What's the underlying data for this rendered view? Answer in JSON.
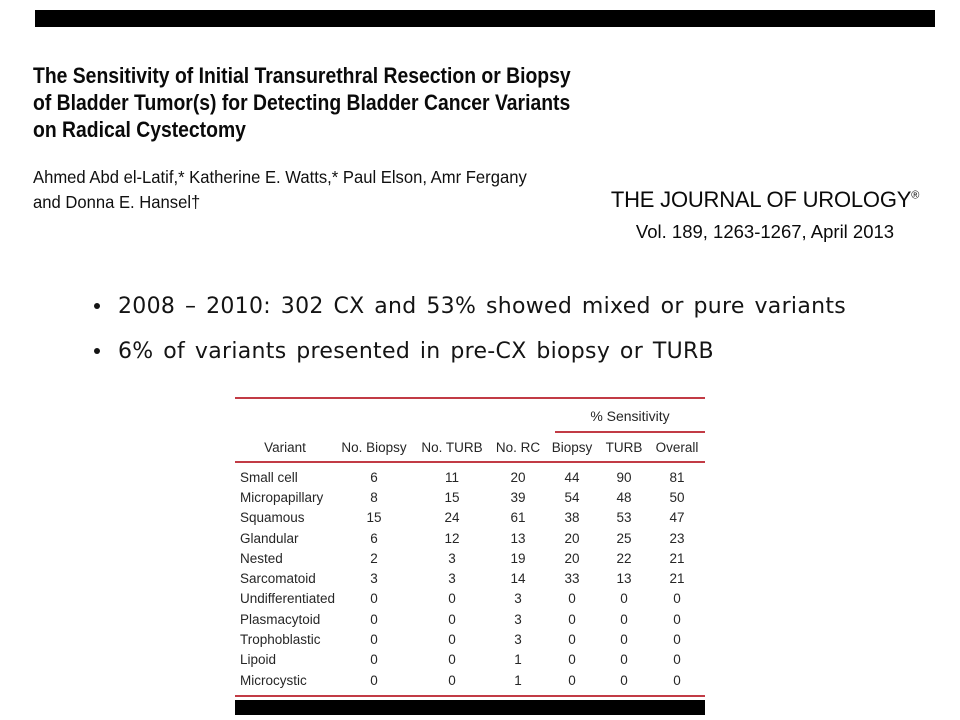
{
  "slide": {
    "title_lines": [
      "The Sensitivity of Initial Transurethral Resection or Biopsy",
      "of Bladder Tumor(s) for Detecting Bladder Cancer Variants",
      "on Radical Cystectomy"
    ],
    "authors_lines": [
      "Ahmed Abd el-Latif,* Katherine E. Watts,* Paul Elson, Amr Fergany",
      "and Donna E. Hansel†"
    ],
    "journal": {
      "name": "THE JOURNAL OF UROLOGY",
      "registered_mark": "®",
      "citation": "Vol. 189, 1263-1267, April 2013"
    },
    "bullets": [
      "2008 – 2010: 302 CX and 53% showed mixed or pure variants",
      "6% of variants presented in pre-CX biopsy or TURB"
    ],
    "colors": {
      "bar": "#000000",
      "table_rule": "#c23b45",
      "text": "#111111"
    }
  },
  "table": {
    "sensitivity_group_header": "% Sensitivity",
    "columns": [
      "Variant",
      "No. Biopsy",
      "No. TURB",
      "No. RC",
      "Biopsy",
      "TURB",
      "Overall"
    ],
    "rows": [
      [
        "Small cell",
        "6",
        "11",
        "20",
        "44",
        "90",
        "81"
      ],
      [
        "Micropapillary",
        "8",
        "15",
        "39",
        "54",
        "48",
        "50"
      ],
      [
        "Squamous",
        "15",
        "24",
        "61",
        "38",
        "53",
        "47"
      ],
      [
        "Glandular",
        "6",
        "12",
        "13",
        "20",
        "25",
        "23"
      ],
      [
        "Nested",
        "2",
        "3",
        "19",
        "20",
        "22",
        "21"
      ],
      [
        "Sarcomatoid",
        "3",
        "3",
        "14",
        "33",
        "13",
        "21"
      ],
      [
        "Undifferentiated",
        "0",
        "0",
        "3",
        "0",
        "0",
        "0"
      ],
      [
        "Plasmacytoid",
        "0",
        "0",
        "3",
        "0",
        "0",
        "0"
      ],
      [
        "Trophoblastic",
        "0",
        "0",
        "3",
        "0",
        "0",
        "0"
      ],
      [
        "Lipoid",
        "0",
        "0",
        "1",
        "0",
        "0",
        "0"
      ],
      [
        "Microcystic",
        "0",
        "0",
        "1",
        "0",
        "0",
        "0"
      ]
    ]
  }
}
